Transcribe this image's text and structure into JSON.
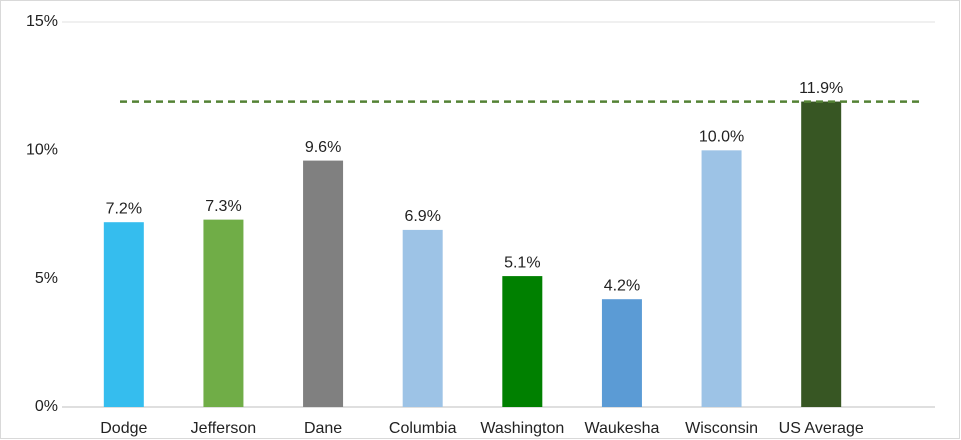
{
  "chart_data": {
    "type": "bar",
    "categories": [
      "Dodge",
      "Jefferson",
      "Dane",
      "Columbia",
      "Washington",
      "Waukesha",
      "Wisconsin",
      "US Average"
    ],
    "values": [
      7.2,
      7.3,
      9.6,
      6.9,
      5.1,
      4.2,
      10.0,
      11.9
    ],
    "value_labels": [
      "7.2%",
      "7.3%",
      "9.6%",
      "6.9%",
      "5.1%",
      "4.2%",
      "10.0%",
      "11.9%"
    ],
    "colors": [
      "#35bdee",
      "#70ad47",
      "#808080",
      "#9dc3e6",
      "#008000",
      "#5b9bd5",
      "#9dc3e6",
      "#375623"
    ],
    "reference_line_color": "#548235",
    "ylim": [
      0,
      15
    ],
    "yticks": [
      {
        "value": 0,
        "label": "0%"
      },
      {
        "value": 5,
        "label": "5%"
      },
      {
        "value": 10,
        "label": "10%"
      },
      {
        "value": 15,
        "label": "15%"
      }
    ]
  }
}
